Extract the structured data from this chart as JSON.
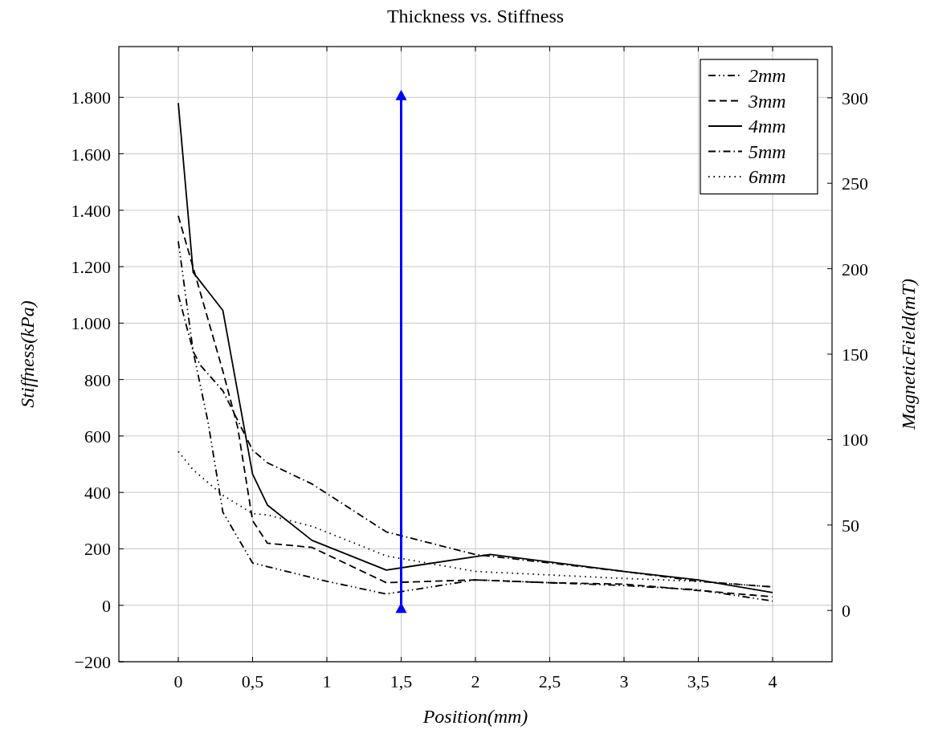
{
  "chart_data": {
    "type": "line",
    "title": "Thickness vs. Stiffness",
    "xlabel": "Position(mm)",
    "ylabel": "Stiffness(kPa)",
    "y2label": "MagneticField(mT)",
    "xlim": [
      -0.4,
      4.4
    ],
    "ylim": [
      -200,
      1980
    ],
    "y2lim": [
      -30,
      330
    ],
    "xticks": [
      0,
      {
        "value": 0.5,
        "label": "0,5"
      },
      1,
      {
        "value": 1.5,
        "label": "1,5"
      },
      2,
      {
        "value": 2.5,
        "label": "2,5"
      },
      3,
      {
        "value": 3.5,
        "label": "3,5"
      },
      4
    ],
    "yticks": [
      {
        "value": -200,
        "label": "−200"
      },
      0,
      200,
      400,
      600,
      800,
      {
        "value": 1000,
        "label": "1.000"
      },
      {
        "value": 1200,
        "label": "1.200"
      },
      {
        "value": 1400,
        "label": "1.400"
      },
      {
        "value": 1600,
        "label": "1.600"
      },
      {
        "value": 1800,
        "label": "1.800"
      }
    ],
    "y2ticks": [
      0,
      50,
      100,
      150,
      200,
      250,
      300
    ],
    "grid": true,
    "legend": "top right",
    "marker": "none",
    "series": [
      {
        "name": "2mm",
        "color": "#000000",
        "line_style": "dashdotdot",
        "x": [
          0,
          0.1,
          0.2,
          0.3,
          0.5,
          1,
          1.4,
          2,
          3,
          3.5,
          4
        ],
        "values": [
          1290,
          900,
          650,
          330,
          150,
          85,
          40,
          90,
          70,
          55,
          15
        ]
      },
      {
        "name": "3mm",
        "color": "#000000",
        "line_style": "dashed",
        "x": [
          0,
          0.3,
          0.4,
          0.5,
          0.6,
          0.9,
          1.4,
          2,
          2.5,
          3,
          4
        ],
        "values": [
          1380,
          830,
          630,
          300,
          220,
          205,
          80,
          90,
          80,
          75,
          30
        ]
      },
      {
        "name": "4mm",
        "color": "#000000",
        "line_style": "solid",
        "x": [
          0,
          0.1,
          0.3,
          0.5,
          0.6,
          0.9,
          1.4,
          2.1,
          3,
          3.5,
          4
        ],
        "values": [
          1780,
          1180,
          1045,
          465,
          355,
          230,
          125,
          180,
          120,
          90,
          45
        ]
      },
      {
        "name": "5mm",
        "color": "#000000",
        "line_style": "dashdot",
        "x": [
          0,
          0.1,
          0.15,
          0.3,
          0.5,
          0.6,
          0.9,
          1.4,
          2,
          3,
          3.5,
          4
        ],
        "values": [
          1100,
          900,
          850,
          760,
          550,
          505,
          430,
          260,
          180,
          120,
          85,
          65
        ]
      },
      {
        "name": "6mm",
        "color": "#000000",
        "line_style": "dotted",
        "x": [
          0,
          0.1,
          0.3,
          0.5,
          0.6,
          0.9,
          1.4,
          2,
          3,
          3.5,
          4
        ],
        "values": [
          545,
          480,
          390,
          325,
          320,
          280,
          175,
          120,
          95,
          85,
          65
        ]
      },
      {
        "color": "#0000ff",
        "axis": "y2",
        "marker": "triangle",
        "line_style": "solid",
        "x": [
          1.5,
          1.5
        ],
        "values": [
          0,
          300
        ]
      }
    ]
  }
}
